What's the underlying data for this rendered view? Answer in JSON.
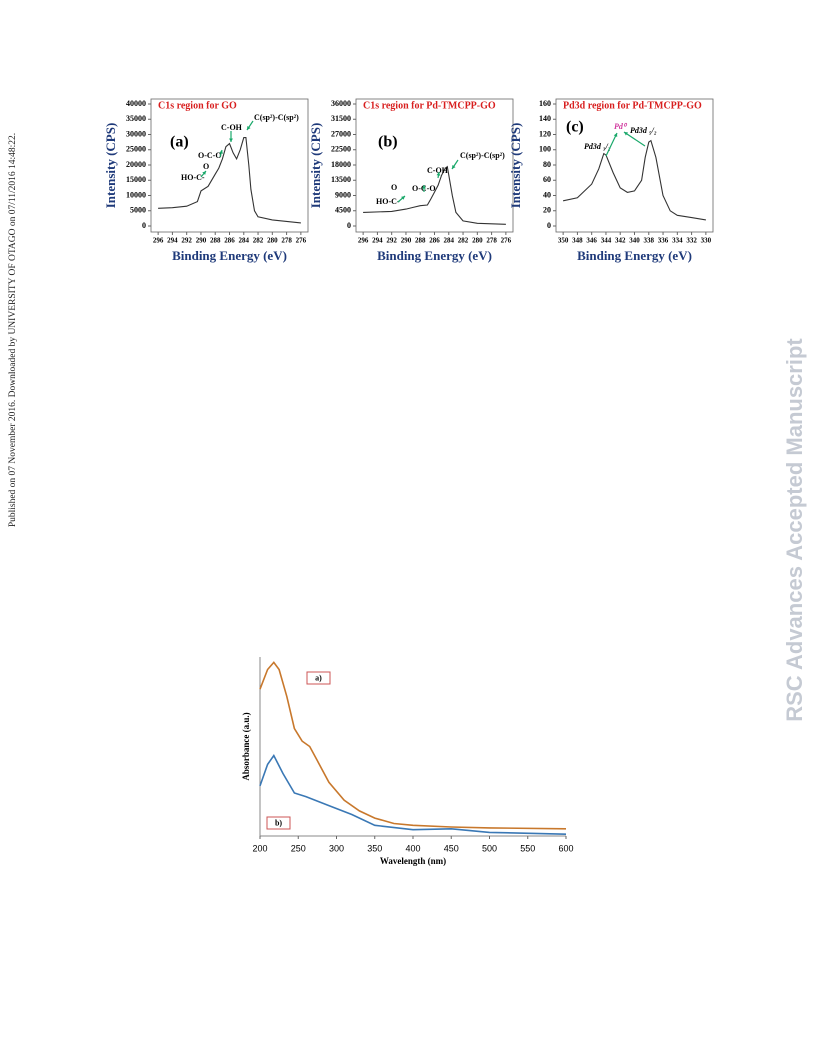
{
  "side_text": "Published on 07 November 2016. Downloaded by UNIVERSITY OF OTAGO on 07/11/2016 14:48:22.",
  "watermark": "RSC Advances Accepted Manuscript",
  "chart_data": [
    {
      "type": "line",
      "title": "C1s region for GO",
      "ylabel": "Intensity (CPS)",
      "xlabel": "Binding Energy (eV)",
      "annotations": [
        "(a)",
        "HO-C-",
        "O",
        "O-C-O",
        "C-OH",
        "C(sp²)-C(sp²)"
      ],
      "x": [
        296,
        294,
        292,
        290.5,
        290,
        289,
        288,
        287.5,
        287,
        286.5,
        286,
        285.5,
        285,
        284.5,
        284,
        283.7,
        283.3,
        283,
        282.5,
        282,
        280,
        278,
        276
      ],
      "values": [
        5800,
        6000,
        6500,
        8000,
        11500,
        13000,
        17000,
        19000,
        22000,
        26000,
        27000,
        24000,
        22000,
        25000,
        29000,
        29000,
        20000,
        12000,
        5000,
        3000,
        2000,
        1500,
        1000
      ],
      "color": "#333333",
      "xlim": [
        297,
        275
      ],
      "ylim": [
        0,
        40000
      ],
      "xticks": [
        296,
        294,
        292,
        290,
        288,
        286,
        284,
        282,
        280,
        278,
        276
      ],
      "yticks": [
        0,
        5000,
        10000,
        15000,
        20000,
        25000,
        30000,
        35000,
        40000
      ]
    },
    {
      "type": "line",
      "title": "C1s region for Pd-TMCPP-GO",
      "ylabel": "Intensity (CPS)",
      "xlabel": "Binding Energy (eV)",
      "annotations": [
        "(b)",
        "O",
        "HO-C-",
        "O-C-O",
        "C-OH",
        "C(sp²)-C(sp²)"
      ],
      "x": [
        296,
        292,
        290,
        289,
        288,
        287,
        286.5,
        286,
        285.5,
        285,
        284.5,
        284.2,
        284,
        283.5,
        283,
        282,
        280,
        276
      ],
      "values": [
        4000,
        4300,
        5000,
        5500,
        6000,
        6200,
        8000,
        10000,
        12000,
        15000,
        17000,
        17500,
        15000,
        9000,
        4000,
        1500,
        800,
        500
      ],
      "color": "#333333",
      "xlim": [
        297,
        275
      ],
      "ylim": [
        0,
        36000
      ],
      "xticks": [
        296,
        294,
        292,
        290,
        288,
        286,
        284,
        282,
        280,
        278,
        276
      ],
      "yticks": [
        0,
        4500,
        9000,
        13500,
        18000,
        22500,
        27000,
        31500,
        36000
      ]
    },
    {
      "type": "line",
      "title": "Pd3d  region for Pd-TMCPP-GO",
      "ylabel": "Intensity (CPS)",
      "xlabel": "Binding Energy (eV)",
      "annotations": [
        "(c)",
        "Pd3d ₃/₂",
        "Pd⁰",
        "Pd3d ₅/₂"
      ],
      "x": [
        350,
        348,
        346,
        345,
        344.3,
        344,
        343,
        342,
        341,
        340,
        339,
        338.5,
        338,
        337.7,
        337,
        336,
        335,
        334,
        332,
        330
      ],
      "values": [
        33,
        37,
        55,
        75,
        95,
        93,
        70,
        50,
        44,
        46,
        60,
        90,
        110,
        112,
        90,
        40,
        20,
        14,
        11,
        8
      ],
      "color": "#333333",
      "xlim": [
        351,
        329
      ],
      "ylim": [
        0,
        160
      ],
      "xticks": [
        350,
        348,
        346,
        344,
        342,
        340,
        338,
        336,
        334,
        332,
        330
      ],
      "yticks": [
        0,
        20,
        40,
        60,
        80,
        100,
        120,
        140,
        160
      ]
    },
    {
      "type": "line",
      "ylabel": "Absorbance (a.u.)",
      "xlabel": "Wavelength (nm)",
      "xlim": [
        200,
        600
      ],
      "ylim": [
        0,
        1
      ],
      "xticks": [
        200,
        250,
        300,
        350,
        400,
        450,
        500,
        550,
        600
      ],
      "series": [
        {
          "name": "a)",
          "color": "#c8782c",
          "x": [
            200,
            210,
            218,
            225,
            235,
            245,
            255,
            265,
            275,
            290,
            310,
            330,
            350,
            375,
            400,
            450,
            500,
            600
          ],
          "values": [
            0.82,
            0.93,
            0.97,
            0.93,
            0.78,
            0.6,
            0.53,
            0.5,
            0.42,
            0.3,
            0.2,
            0.14,
            0.1,
            0.07,
            0.06,
            0.05,
            0.045,
            0.04
          ]
        },
        {
          "name": "b)",
          "color": "#3a78b5",
          "x": [
            200,
            210,
            218,
            230,
            245,
            260,
            290,
            320,
            350,
            400,
            450,
            500,
            600
          ],
          "values": [
            0.28,
            0.4,
            0.45,
            0.35,
            0.24,
            0.22,
            0.17,
            0.12,
            0.06,
            0.035,
            0.04,
            0.02,
            0.01
          ]
        }
      ]
    }
  ]
}
